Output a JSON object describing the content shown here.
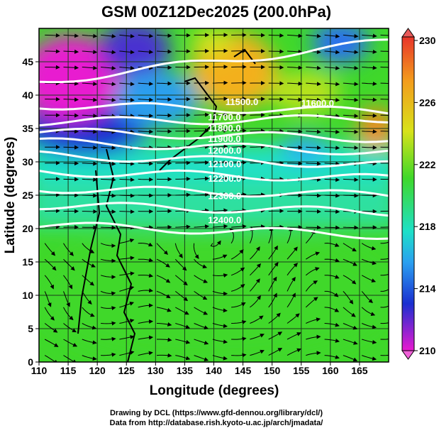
{
  "chart_data": {
    "type": "heatmap",
    "title": "GSM 00Z12Dec2025 (200.0hPa)",
    "xlabel": "Longitude (degrees)",
    "ylabel": "Latitude  (degrees)",
    "xlim": [
      110,
      170
    ],
    "ylim": [
      0,
      50
    ],
    "xticks": [
      110,
      115,
      120,
      125,
      130,
      135,
      140,
      145,
      150,
      155,
      160,
      165
    ],
    "yticks": [
      0,
      5,
      10,
      15,
      20,
      25,
      30,
      35,
      40,
      45
    ],
    "grid": true,
    "colorbar": {
      "ticks": [
        230,
        226,
        222,
        218,
        214,
        210
      ],
      "range": [
        210,
        230
      ],
      "colors": [
        "#e8352a",
        "#f39c1c",
        "#d8e21a",
        "#3fd82a",
        "#1ee0c8",
        "#2b9ff0",
        "#1a2fd0",
        "#e81ad0"
      ]
    },
    "contours": [
      {
        "label": "11500.0",
        "lat_west": 42,
        "lat_east": 48,
        "label_lon": 142,
        "label_lat": 38.5
      },
      {
        "label": "11600.0",
        "lat_west": 38.5,
        "lat_east": 37.5,
        "label_lon": 155,
        "label_lat": 38.3
      },
      {
        "label": "11700.0",
        "lat_west": 36,
        "lat_east": 36.5,
        "label_lon": 139,
        "label_lat": 36.2
      },
      {
        "label": "11800.0",
        "lat_west": 34.5,
        "lat_east": 33.5,
        "label_lon": 139,
        "label_lat": 34.6
      },
      {
        "label": "11900.0",
        "lat_west": 33,
        "lat_east": 31.5,
        "label_lon": 139,
        "label_lat": 33.0
      },
      {
        "label": "12000.0",
        "lat_west": 31,
        "lat_east": 29.5,
        "label_lon": 139,
        "label_lat": 31.2
      },
      {
        "label": "12100.0",
        "lat_west": 28.5,
        "lat_east": 27.5,
        "label_lon": 139,
        "label_lat": 29.2
      },
      {
        "label": "12200.0",
        "lat_west": 26,
        "lat_east": 25,
        "label_lon": 139,
        "label_lat": 27.0
      },
      {
        "label": "12300.0",
        "lat_west": 23.5,
        "lat_east": 22.5,
        "label_lon": 139,
        "label_lat": 24.4
      },
      {
        "label": "12400.0",
        "lat_west": 20.5,
        "lat_east": 19,
        "label_lon": 139,
        "label_lat": 20.8
      }
    ]
  },
  "footer": {
    "line1": "Drawing by DCL (https://www.gfd-dennou.org/library/dcl/)",
    "line2": "Data from http://database.rish.kyoto-u.ac.jp/arch/jmadata/"
  }
}
